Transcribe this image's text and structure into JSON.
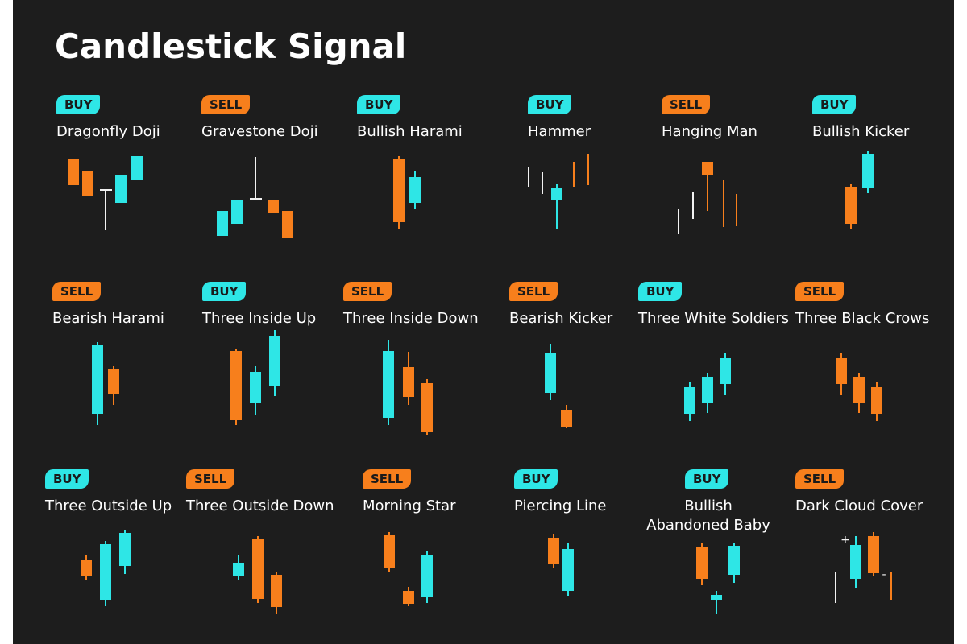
{
  "title": "Candlestick Signal",
  "colors": {
    "background": "#1d1d1d",
    "buy": "#2ee6e6",
    "sell": "#f77f1c",
    "neutral": "#f2f2f2",
    "text": "#ffffff"
  },
  "patterns": [
    {
      "signal": "BUY",
      "name": "Dragonfly Doji"
    },
    {
      "signal": "SELL",
      "name": "Gravestone Doji"
    },
    {
      "signal": "BUY",
      "name": "Bullish Harami"
    },
    {
      "signal": "BUY",
      "name": "Hammer"
    },
    {
      "signal": "SELL",
      "name": "Hanging Man"
    },
    {
      "signal": "BUY",
      "name": "Bullish Kicker"
    },
    {
      "signal": "SELL",
      "name": "Bearish Harami"
    },
    {
      "signal": "BUY",
      "name": "Three Inside Up"
    },
    {
      "signal": "SELL",
      "name": "Three Inside Down"
    },
    {
      "signal": "SELL",
      "name": "Bearish Kicker"
    },
    {
      "signal": "BUY",
      "name": "Three White Soldiers"
    },
    {
      "signal": "SELL",
      "name": "Three Black Crows"
    },
    {
      "signal": "BUY",
      "name": "Three Outside Up"
    },
    {
      "signal": "SELL",
      "name": "Three Outside Down"
    },
    {
      "signal": "SELL",
      "name": "Morning Star"
    },
    {
      "signal": "BUY",
      "name": "Piercing Line"
    },
    {
      "signal": "BUY",
      "name": "Bullish\nAbandoned Baby"
    },
    {
      "signal": "SELL",
      "name": "Dark Cloud Cover"
    }
  ],
  "marks": {
    "plus": "+",
    "minus": "-"
  }
}
